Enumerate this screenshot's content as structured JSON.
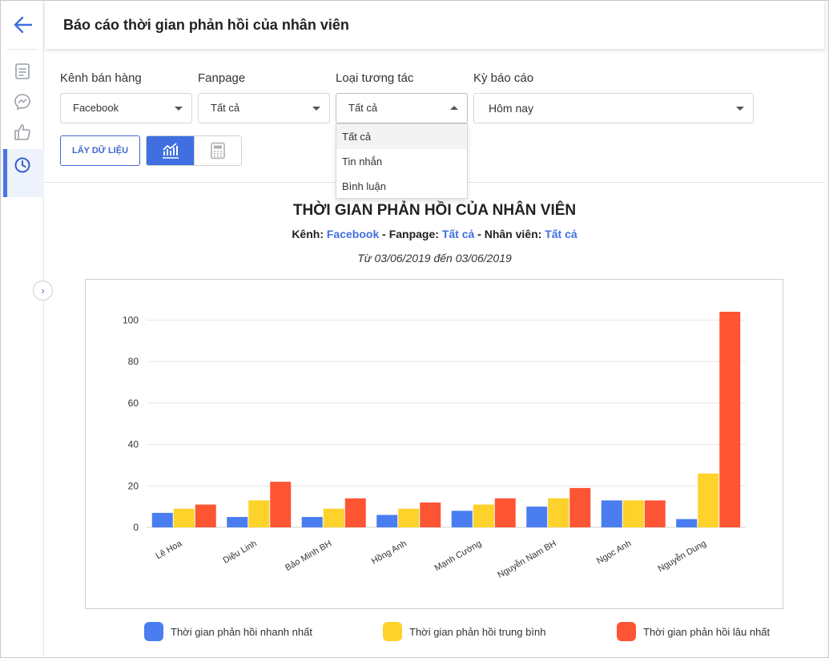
{
  "header": {
    "title": "Báo cáo thời gian phản hồi của nhân viên"
  },
  "sidebar": {
    "items": [
      {
        "icon": "report-icon"
      },
      {
        "icon": "messenger-icon"
      },
      {
        "icon": "like-icon"
      },
      {
        "icon": "clock-icon",
        "active": true
      }
    ]
  },
  "filters": {
    "channel": {
      "label": "Kênh bán hàng",
      "value": "Facebook"
    },
    "fanpage": {
      "label": "Fanpage",
      "value": "Tất cả"
    },
    "interaction": {
      "label": "Loại tương tác",
      "value": "Tất cả",
      "options": [
        "Tất cả",
        "Tin nhắn",
        "Bình luận"
      ]
    },
    "period": {
      "label": "Kỳ báo cáo",
      "value": "Hôm nay"
    }
  },
  "toolbar": {
    "get_data_label": "LẤY DỮ LIỆU"
  },
  "report": {
    "title": "THỜI GIAN PHẢN HỒI CỦA NHÂN VIÊN",
    "channel_label": "Kênh:",
    "channel_value": "Facebook",
    "fanpage_label": "Fanpage:",
    "fanpage_value": "Tất cả",
    "staff_label": "Nhân viên:",
    "staff_value": "Tất cả",
    "date_range": "Từ 03/06/2019 đến 03/06/2019"
  },
  "chart_data": {
    "type": "bar",
    "categories": [
      "Lê Hoa",
      "Diệu Linh",
      "Bảo Minh BH",
      "Hồng Anh",
      "Mạnh Cường",
      "Nguyễn Nam BH",
      "Ngọc Anh",
      "Nguyễn Dung"
    ],
    "series": [
      {
        "name": "Thời gian phản hồi nhanh nhất",
        "color": "#4a7df0",
        "values": [
          7,
          5,
          5,
          6,
          8,
          10,
          13,
          4
        ]
      },
      {
        "name": "Thời gian phản hồi trung bình",
        "color": "#fdd22a",
        "values": [
          9,
          13,
          9,
          9,
          11,
          14,
          13,
          26
        ]
      },
      {
        "name": "Thời gian phản hồi lâu nhất",
        "color": "#fd5534",
        "values": [
          11,
          22,
          14,
          12,
          14,
          19,
          13,
          104
        ]
      }
    ],
    "y_ticks": [
      0,
      20,
      40,
      60,
      80,
      100
    ],
    "ylim": [
      0,
      104
    ],
    "grid": true,
    "legend": "bottom"
  }
}
